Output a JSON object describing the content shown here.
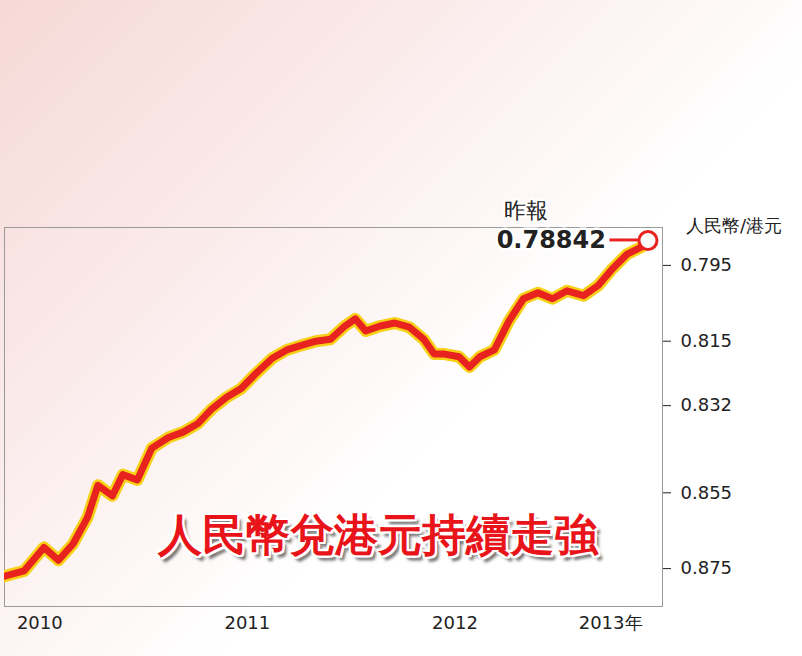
{
  "chart_data": {
    "type": "line",
    "title": "人民幣兌港元持續走強",
    "ylabel": "人民幣/港元",
    "annotation": {
      "label": "昨報",
      "value": 0.78842
    },
    "x": [
      2010.33,
      2010.425,
      2010.52,
      2010.59,
      2010.66,
      2010.73,
      2010.78,
      2010.85,
      2010.9,
      2010.97,
      2011.04,
      2011.12,
      2011.19,
      2011.26,
      2011.33,
      2011.4,
      2011.47,
      2011.54,
      2011.62,
      2011.69,
      2011.76,
      2011.83,
      2011.9,
      2011.97,
      2012.02,
      2012.07,
      2012.14,
      2012.21,
      2012.28,
      2012.35,
      2012.4,
      2012.45,
      2012.52,
      2012.57,
      2012.62,
      2012.69,
      2012.76,
      2012.83,
      2012.9,
      2012.97,
      2013.04,
      2013.12,
      2013.19,
      2013.26,
      2013.33,
      2013.4,
      2013.43
    ],
    "values": [
      0.877,
      0.8756,
      0.8694,
      0.8728,
      0.8685,
      0.8615,
      0.853,
      0.8558,
      0.8502,
      0.8516,
      0.8432,
      0.8404,
      0.839,
      0.8368,
      0.8328,
      0.8298,
      0.8275,
      0.8236,
      0.8195,
      0.8173,
      0.8161,
      0.815,
      0.8145,
      0.811,
      0.8091,
      0.8123,
      0.811,
      0.8102,
      0.8113,
      0.8145,
      0.8184,
      0.8184,
      0.8191,
      0.8218,
      0.8191,
      0.8173,
      0.8097,
      0.8038,
      0.8022,
      0.8038,
      0.8017,
      0.803,
      0.8003,
      0.7958,
      0.792,
      0.7901,
      0.78842
    ],
    "color": "#e8231f",
    "xlim": [
      2010.33,
      2013.5
    ],
    "xticks": [
      {
        "value": 2010.5,
        "label": "2010"
      },
      {
        "value": 2011.5,
        "label": "2011"
      },
      {
        "value": 2012.5,
        "label": "2012"
      },
      {
        "value": 2013.25,
        "label": "2013年"
      }
    ],
    "ylim": [
      0.885,
      0.785
    ],
    "yticks": [
      0.795,
      0.815,
      0.832,
      0.855,
      0.875
    ],
    "grid": false
  }
}
